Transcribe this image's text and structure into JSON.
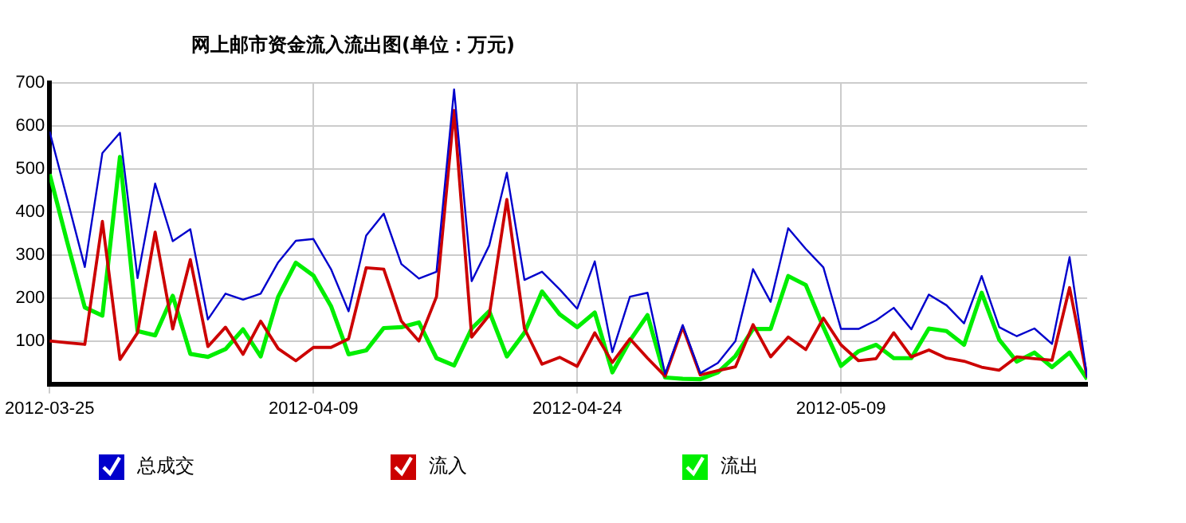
{
  "chart_data": {
    "type": "line",
    "title": "网上邮市资金流入流出图(单位：万元)",
    "x": [
      "2012-03-25",
      "2012-03-26",
      "2012-03-27",
      "2012-03-28",
      "2012-03-29",
      "2012-03-30",
      "2012-03-31",
      "2012-04-01",
      "2012-04-02",
      "2012-04-03",
      "2012-04-04",
      "2012-04-05",
      "2012-04-06",
      "2012-04-07",
      "2012-04-08",
      "2012-04-09",
      "2012-04-10",
      "2012-04-11",
      "2012-04-12",
      "2012-04-13",
      "2012-04-14",
      "2012-04-15",
      "2012-04-16",
      "2012-04-17",
      "2012-04-18",
      "2012-04-19",
      "2012-04-20",
      "2012-04-21",
      "2012-04-22",
      "2012-04-23",
      "2012-04-24",
      "2012-04-25",
      "2012-04-26",
      "2012-04-27",
      "2012-04-28",
      "2012-04-29",
      "2012-04-30",
      "2012-05-01",
      "2012-05-02",
      "2012-05-03",
      "2012-05-04",
      "2012-05-05",
      "2012-05-06",
      "2012-05-07",
      "2012-05-08",
      "2012-05-09",
      "2012-05-10",
      "2012-05-11",
      "2012-05-12",
      "2012-05-13",
      "2012-05-14",
      "2012-05-15",
      "2012-05-16",
      "2012-05-17",
      "2012-05-18",
      "2012-05-19",
      "2012-05-20",
      "2012-05-21",
      "2012-05-22",
      "2012-05-23"
    ],
    "series": [
      {
        "name": "总成交",
        "color": "#0000cc",
        "values": [
          587,
          430,
          272,
          537,
          584,
          246,
          466,
          332,
          360,
          150,
          210,
          196,
          210,
          283,
          333,
          337,
          267,
          169,
          345,
          396,
          279,
          245,
          261,
          685,
          239,
          322,
          491,
          242,
          261,
          220,
          175,
          285,
          74,
          203,
          212,
          23,
          137,
          25,
          49,
          100,
          267,
          191,
          362,
          314,
          271,
          128,
          128,
          148,
          177,
          127,
          208,
          183,
          141,
          251,
          132,
          111,
          129,
          93,
          295,
          15
        ]
      },
      {
        "name": "流入",
        "color": "#cc0000",
        "values": [
          100,
          96,
          92,
          378,
          57,
          119,
          353,
          128,
          289,
          87,
          132,
          69,
          146,
          82,
          54,
          85,
          85,
          105,
          270,
          267,
          146,
          100,
          203,
          636,
          109,
          160,
          429,
          129,
          46,
          62,
          41,
          119,
          50,
          105,
          60,
          18,
          132,
          21,
          31,
          40,
          138,
          63,
          109,
          80,
          153,
          91,
          54,
          59,
          119,
          63,
          79,
          60,
          53,
          39,
          32,
          63,
          59,
          55,
          224,
          15
        ]
      },
      {
        "name": "流出",
        "color": "#00ee00",
        "values": [
          488,
          330,
          178,
          159,
          528,
          123,
          113,
          205,
          70,
          63,
          81,
          127,
          64,
          203,
          282,
          252,
          181,
          69,
          78,
          130,
          132,
          143,
          60,
          43,
          129,
          169,
          64,
          119,
          215,
          162,
          132,
          166,
          27,
          101,
          160,
          15,
          12,
          11,
          27,
          65,
          128,
          128,
          251,
          230,
          132,
          42,
          76,
          91,
          60,
          60,
          129,
          123,
          91,
          212,
          103,
          52,
          73,
          39,
          73,
          11
        ]
      }
    ],
    "xlim": [
      "2012-03-25",
      "2012-05-23"
    ],
    "xticks": [
      "2012-03-25",
      "2012-04-09",
      "2012-04-24",
      "2012-05-09"
    ],
    "ylim": [
      0,
      700
    ],
    "yticks": [
      {
        "value": 0,
        "label": null
      },
      100,
      200,
      300,
      400,
      500,
      600,
      700
    ],
    "grid": true,
    "legend": "bottom",
    "marker": "none",
    "line_style": "solid"
  }
}
